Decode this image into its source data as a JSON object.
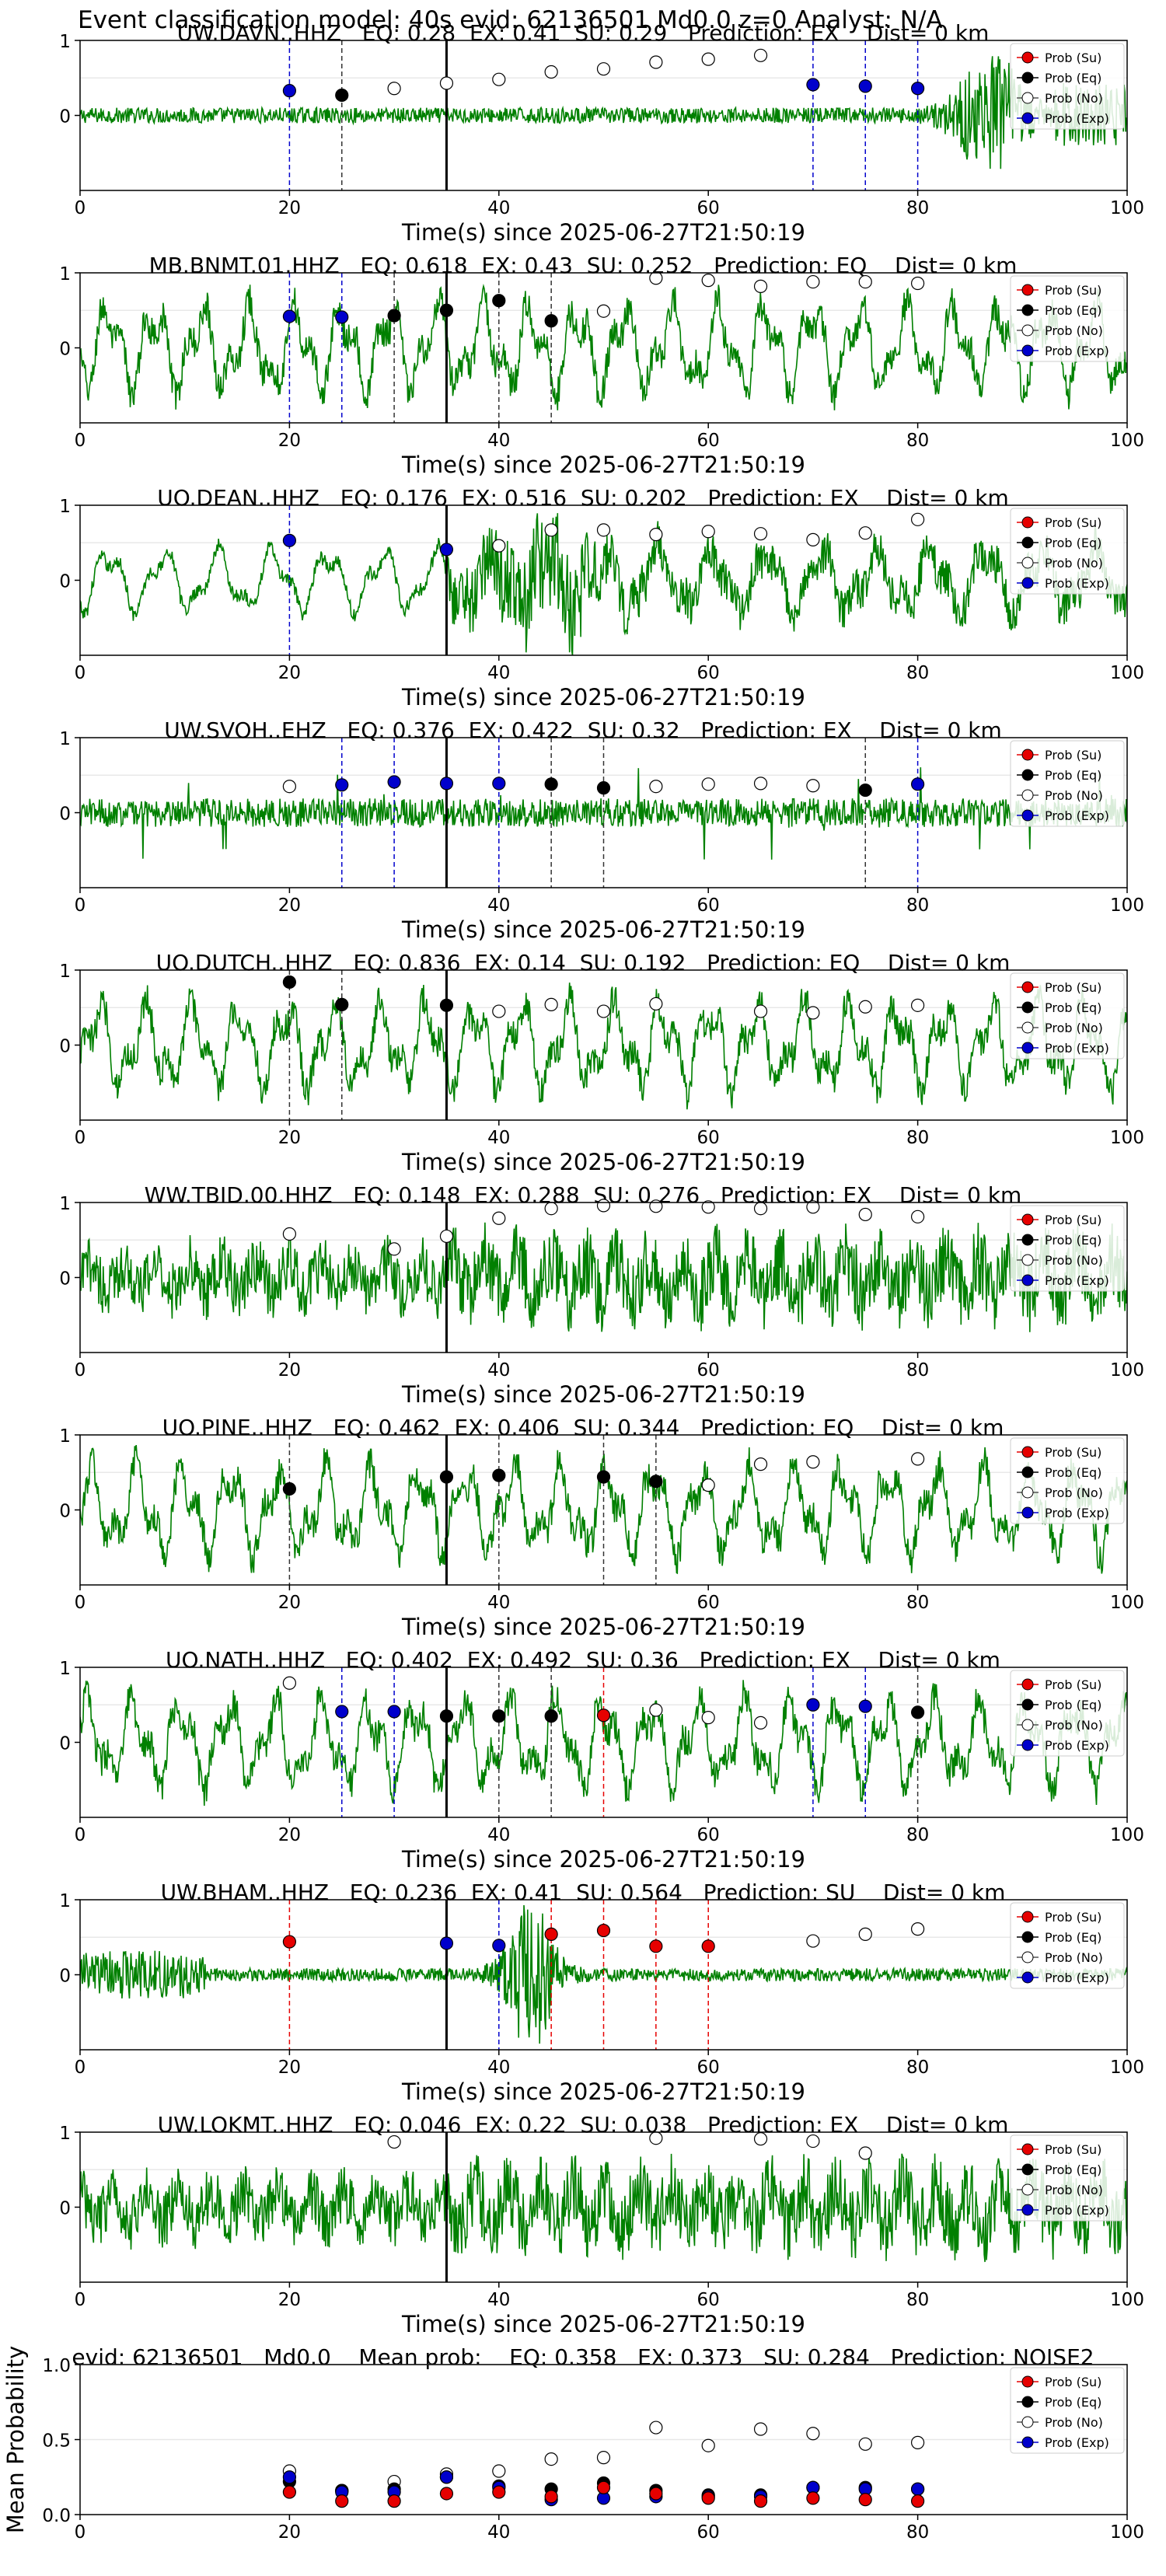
{
  "title": "Event classification model: 40s evid: 62136501 Md0.0 z=0 Analyst: N/A",
  "colors": {
    "su": "#e60000",
    "eq": "#000000",
    "no": "#ffffff",
    "exp": "#0000cc",
    "waveform": "#008000"
  },
  "chart_data": [
    {
      "type": "line",
      "title": "UW.DAVN..HHZ   EQ: 0.28  EX: 0.41  SU: 0.29   Prediction: EX    Dist= 0 km",
      "xlabel": "Time(s) since 2025-06-27T21:50:19",
      "xlim": [
        0,
        100
      ],
      "ylim": [
        -1,
        1
      ],
      "xticks": [
        "0",
        "20",
        "40",
        "60",
        "80",
        "100"
      ],
      "yticks": [
        "1",
        "0"
      ],
      "legend": [
        "Prob (Su)",
        "Prob (Eq)",
        "Prob (No)",
        "Prob (Exp)"
      ],
      "legend_position": "top-right",
      "event_line_x": 35,
      "waveform_style": "burst_end",
      "points": [
        {
          "x": 20,
          "y": 0.33,
          "c": "exp",
          "v": true
        },
        {
          "x": 25,
          "y": 0.27,
          "c": "eq",
          "v": true
        },
        {
          "x": 30,
          "y": 0.36,
          "c": "no"
        },
        {
          "x": 35,
          "y": 0.43,
          "c": "no"
        },
        {
          "x": 40,
          "y": 0.48,
          "c": "no"
        },
        {
          "x": 45,
          "y": 0.58,
          "c": "no"
        },
        {
          "x": 50,
          "y": 0.62,
          "c": "no"
        },
        {
          "x": 55,
          "y": 0.71,
          "c": "no"
        },
        {
          "x": 60,
          "y": 0.75,
          "c": "no"
        },
        {
          "x": 65,
          "y": 0.8,
          "c": "no"
        },
        {
          "x": 70,
          "y": 0.41,
          "c": "exp",
          "v": true
        },
        {
          "x": 75,
          "y": 0.39,
          "c": "exp",
          "v": true
        },
        {
          "x": 80,
          "y": 0.36,
          "c": "exp",
          "v": true
        }
      ]
    },
    {
      "type": "line",
      "title": "MB.BNMT.01.HHZ   EQ: 0.618  EX: 0.43  SU: 0.252   Prediction: EQ    Dist= 0 km",
      "xlabel": "Time(s) since 2025-06-27T21:50:19",
      "xlim": [
        0,
        100
      ],
      "ylim": [
        -1,
        1
      ],
      "xticks": [
        "0",
        "20",
        "40",
        "60",
        "80",
        "100"
      ],
      "yticks": [
        "1",
        "0"
      ],
      "legend": [
        "Prob (Su)",
        "Prob (Eq)",
        "Prob (No)",
        "Prob (Exp)"
      ],
      "legend_position": "top-right",
      "event_line_x": 35,
      "waveform_style": "lowfreq",
      "points": [
        {
          "x": 20,
          "y": 0.42,
          "c": "exp",
          "v": true
        },
        {
          "x": 25,
          "y": 0.41,
          "c": "exp",
          "v": true
        },
        {
          "x": 30,
          "y": 0.43,
          "c": "eq",
          "v": true
        },
        {
          "x": 35,
          "y": 0.5,
          "c": "eq",
          "v": true
        },
        {
          "x": 40,
          "y": 0.63,
          "c": "eq",
          "v": true
        },
        {
          "x": 45,
          "y": 0.36,
          "c": "eq",
          "v": true
        },
        {
          "x": 50,
          "y": 0.49,
          "c": "no"
        },
        {
          "x": 55,
          "y": 0.93,
          "c": "no"
        },
        {
          "x": 60,
          "y": 0.9,
          "c": "no"
        },
        {
          "x": 65,
          "y": 0.82,
          "c": "no"
        },
        {
          "x": 70,
          "y": 0.88,
          "c": "no"
        },
        {
          "x": 75,
          "y": 0.88,
          "c": "no"
        },
        {
          "x": 80,
          "y": 0.86,
          "c": "no"
        }
      ]
    },
    {
      "type": "line",
      "title": "UO.DEAN..HHZ   EQ: 0.176  EX: 0.516  SU: 0.202   Prediction: EX    Dist= 0 km",
      "xlabel": "Time(s) since 2025-06-27T21:50:19",
      "xlim": [
        0,
        100
      ],
      "ylim": [
        -1,
        1
      ],
      "xticks": [
        "0",
        "20",
        "40",
        "60",
        "80",
        "100"
      ],
      "yticks": [
        "1",
        "0"
      ],
      "legend": [
        "Prob (Su)",
        "Prob (Eq)",
        "Prob (No)",
        "Prob (Exp)"
      ],
      "legend_position": "top-right",
      "event_line_x": 35,
      "waveform_style": "lowfreq_burst",
      "points": [
        {
          "x": 20,
          "y": 0.53,
          "c": "exp",
          "v": true
        },
        {
          "x": 35,
          "y": 0.41,
          "c": "exp"
        },
        {
          "x": 40,
          "y": 0.46,
          "c": "no"
        },
        {
          "x": 45,
          "y": 0.67,
          "c": "no"
        },
        {
          "x": 50,
          "y": 0.67,
          "c": "no"
        },
        {
          "x": 55,
          "y": 0.61,
          "c": "no"
        },
        {
          "x": 60,
          "y": 0.65,
          "c": "no"
        },
        {
          "x": 65,
          "y": 0.62,
          "c": "no"
        },
        {
          "x": 70,
          "y": 0.54,
          "c": "no"
        },
        {
          "x": 75,
          "y": 0.63,
          "c": "no"
        },
        {
          "x": 80,
          "y": 0.81,
          "c": "no"
        }
      ]
    },
    {
      "type": "line",
      "title": "UW.SVOH..EHZ   EQ: 0.376  EX: 0.422  SU: 0.32   Prediction: EX    Dist= 0 km",
      "xlabel": "Time(s) since 2025-06-27T21:50:19",
      "xlim": [
        0,
        100
      ],
      "ylim": [
        -1,
        1
      ],
      "xticks": [
        "0",
        "20",
        "40",
        "60",
        "80",
        "100"
      ],
      "yticks": [
        "1",
        "0"
      ],
      "legend": [
        "Prob (Su)",
        "Prob (Eq)",
        "Prob (No)",
        "Prob (Exp)"
      ],
      "legend_position": "top-right",
      "event_line_x": 35,
      "waveform_style": "noise",
      "points": [
        {
          "x": 20,
          "y": 0.35,
          "c": "no"
        },
        {
          "x": 25,
          "y": 0.37,
          "c": "exp",
          "v": true
        },
        {
          "x": 30,
          "y": 0.41,
          "c": "exp",
          "v": true
        },
        {
          "x": 35,
          "y": 0.39,
          "c": "exp"
        },
        {
          "x": 40,
          "y": 0.39,
          "c": "exp",
          "v": true
        },
        {
          "x": 45,
          "y": 0.38,
          "c": "eq",
          "v": true
        },
        {
          "x": 50,
          "y": 0.33,
          "c": "eq",
          "v": true
        },
        {
          "x": 55,
          "y": 0.35,
          "c": "no"
        },
        {
          "x": 60,
          "y": 0.38,
          "c": "no"
        },
        {
          "x": 65,
          "y": 0.39,
          "c": "no"
        },
        {
          "x": 70,
          "y": 0.36,
          "c": "no"
        },
        {
          "x": 75,
          "y": 0.3,
          "c": "eq",
          "v": true
        },
        {
          "x": 80,
          "y": 0.38,
          "c": "exp",
          "v": true
        }
      ]
    },
    {
      "type": "line",
      "title": "UO.DUTCH..HHZ   EQ: 0.836  EX: 0.14  SU: 0.192   Prediction: EQ    Dist= 0 km",
      "xlabel": "Time(s) since 2025-06-27T21:50:19",
      "xlim": [
        0,
        100
      ],
      "ylim": [
        -1,
        1
      ],
      "xticks": [
        "0",
        "20",
        "40",
        "60",
        "80",
        "100"
      ],
      "yticks": [
        "1",
        "0"
      ],
      "legend": [
        "Prob (Su)",
        "Prob (Eq)",
        "Prob (No)",
        "Prob (Exp)"
      ],
      "legend_position": "top-right",
      "event_line_x": 35,
      "waveform_style": "lowfreq",
      "points": [
        {
          "x": 20,
          "y": 0.84,
          "c": "eq",
          "v": true
        },
        {
          "x": 25,
          "y": 0.54,
          "c": "eq",
          "v": true
        },
        {
          "x": 35,
          "y": 0.53,
          "c": "eq"
        },
        {
          "x": 40,
          "y": 0.45,
          "c": "no"
        },
        {
          "x": 45,
          "y": 0.54,
          "c": "no"
        },
        {
          "x": 50,
          "y": 0.45,
          "c": "no"
        },
        {
          "x": 55,
          "y": 0.55,
          "c": "no"
        },
        {
          "x": 65,
          "y": 0.45,
          "c": "no"
        },
        {
          "x": 70,
          "y": 0.43,
          "c": "no"
        },
        {
          "x": 75,
          "y": 0.51,
          "c": "no"
        },
        {
          "x": 80,
          "y": 0.53,
          "c": "no"
        }
      ]
    },
    {
      "type": "line",
      "title": "WW.TBID.00.HHZ   EQ: 0.148  EX: 0.288  SU: 0.276   Prediction: EX    Dist= 0 km",
      "xlabel": "Time(s) since 2025-06-27T21:50:19",
      "xlim": [
        0,
        100
      ],
      "ylim": [
        -1,
        1
      ],
      "xticks": [
        "0",
        "20",
        "40",
        "60",
        "80",
        "100"
      ],
      "yticks": [
        "1",
        "0"
      ],
      "legend": [
        "Prob (Su)",
        "Prob (Eq)",
        "Prob (No)",
        "Prob (Exp)"
      ],
      "legend_position": "top-right",
      "event_line_x": 35,
      "waveform_style": "noise_large",
      "points": [
        {
          "x": 20,
          "y": 0.58,
          "c": "no"
        },
        {
          "x": 30,
          "y": 0.38,
          "c": "no"
        },
        {
          "x": 35,
          "y": 0.55,
          "c": "no"
        },
        {
          "x": 40,
          "y": 0.79,
          "c": "no"
        },
        {
          "x": 45,
          "y": 0.92,
          "c": "no"
        },
        {
          "x": 50,
          "y": 0.96,
          "c": "no"
        },
        {
          "x": 55,
          "y": 0.95,
          "c": "no"
        },
        {
          "x": 60,
          "y": 0.94,
          "c": "no"
        },
        {
          "x": 65,
          "y": 0.92,
          "c": "no"
        },
        {
          "x": 70,
          "y": 0.94,
          "c": "no"
        },
        {
          "x": 75,
          "y": 0.84,
          "c": "no"
        },
        {
          "x": 80,
          "y": 0.81,
          "c": "no"
        }
      ]
    },
    {
      "type": "line",
      "title": "UO.PINE..HHZ   EQ: 0.462  EX: 0.406  SU: 0.344   Prediction: EQ    Dist= 0 km",
      "xlabel": "Time(s) since 2025-06-27T21:50:19",
      "xlim": [
        0,
        100
      ],
      "ylim": [
        -1,
        1
      ],
      "xticks": [
        "0",
        "20",
        "40",
        "60",
        "80",
        "100"
      ],
      "yticks": [
        "1",
        "0"
      ],
      "legend": [
        "Prob (Su)",
        "Prob (Eq)",
        "Prob (No)",
        "Prob (Exp)"
      ],
      "legend_position": "top-right",
      "event_line_x": 35,
      "waveform_style": "lowfreq",
      "points": [
        {
          "x": 20,
          "y": 0.28,
          "c": "eq",
          "v": true
        },
        {
          "x": 35,
          "y": 0.44,
          "c": "eq"
        },
        {
          "x": 40,
          "y": 0.46,
          "c": "eq",
          "v": true
        },
        {
          "x": 50,
          "y": 0.44,
          "c": "eq",
          "v": true
        },
        {
          "x": 55,
          "y": 0.38,
          "c": "eq",
          "v": true
        },
        {
          "x": 60,
          "y": 0.33,
          "c": "no"
        },
        {
          "x": 65,
          "y": 0.61,
          "c": "no"
        },
        {
          "x": 70,
          "y": 0.64,
          "c": "no"
        },
        {
          "x": 80,
          "y": 0.68,
          "c": "no"
        }
      ]
    },
    {
      "type": "line",
      "title": "UO.NATH..HHZ   EQ: 0.402  EX: 0.492  SU: 0.36   Prediction: EX    Dist= 0 km",
      "xlabel": "Time(s) since 2025-06-27T21:50:19",
      "xlim": [
        0,
        100
      ],
      "ylim": [
        -1,
        1
      ],
      "xticks": [
        "0",
        "20",
        "40",
        "60",
        "80",
        "100"
      ],
      "yticks": [
        "1",
        "0"
      ],
      "legend": [
        "Prob (Su)",
        "Prob (Eq)",
        "Prob (No)",
        "Prob (Exp)"
      ],
      "legend_position": "top-right",
      "event_line_x": 35,
      "waveform_style": "lowfreq",
      "points": [
        {
          "x": 20,
          "y": 0.79,
          "c": "no"
        },
        {
          "x": 25,
          "y": 0.41,
          "c": "exp",
          "v": true
        },
        {
          "x": 30,
          "y": 0.41,
          "c": "exp",
          "v": true
        },
        {
          "x": 35,
          "y": 0.35,
          "c": "eq"
        },
        {
          "x": 40,
          "y": 0.35,
          "c": "eq",
          "v": true
        },
        {
          "x": 45,
          "y": 0.35,
          "c": "eq",
          "v": true
        },
        {
          "x": 50,
          "y": 0.36,
          "c": "su",
          "v": true
        },
        {
          "x": 55,
          "y": 0.43,
          "c": "no"
        },
        {
          "x": 60,
          "y": 0.33,
          "c": "no"
        },
        {
          "x": 65,
          "y": 0.26,
          "c": "no"
        },
        {
          "x": 70,
          "y": 0.5,
          "c": "exp",
          "v": true
        },
        {
          "x": 75,
          "y": 0.48,
          "c": "exp",
          "v": true
        },
        {
          "x": 80,
          "y": 0.4,
          "c": "eq",
          "v": true
        }
      ]
    },
    {
      "type": "line",
      "title": "UW.BHAM..HHZ   EQ: 0.236  EX: 0.41  SU: 0.564   Prediction: SU    Dist= 0 km",
      "xlabel": "Time(s) since 2025-06-27T21:50:19",
      "xlim": [
        0,
        100
      ],
      "ylim": [
        -1,
        1
      ],
      "xticks": [
        "0",
        "20",
        "40",
        "60",
        "80",
        "100"
      ],
      "yticks": [
        "1",
        "0"
      ],
      "legend": [
        "Prob (Su)",
        "Prob (Eq)",
        "Prob (No)",
        "Prob (Exp)"
      ],
      "legend_position": "top-right",
      "event_line_x": 35,
      "waveform_style": "burst_mid",
      "points": [
        {
          "x": 20,
          "y": 0.44,
          "c": "su",
          "v": true
        },
        {
          "x": 35,
          "y": 0.42,
          "c": "exp"
        },
        {
          "x": 40,
          "y": 0.39,
          "c": "exp",
          "v": true
        },
        {
          "x": 45,
          "y": 0.54,
          "c": "su",
          "v": true
        },
        {
          "x": 50,
          "y": 0.59,
          "c": "su",
          "v": true
        },
        {
          "x": 55,
          "y": 0.38,
          "c": "su",
          "v": true
        },
        {
          "x": 60,
          "y": 0.38,
          "c": "su",
          "v": true
        },
        {
          "x": 70,
          "y": 0.45,
          "c": "no"
        },
        {
          "x": 75,
          "y": 0.54,
          "c": "no"
        },
        {
          "x": 80,
          "y": 0.61,
          "c": "no"
        }
      ]
    },
    {
      "type": "line",
      "title": "UW.LOKMT..HHZ   EQ: 0.046  EX: 0.22  SU: 0.038   Prediction: EX    Dist= 0 km",
      "xlabel": "Time(s) since 2025-06-27T21:50:19",
      "xlim": [
        0,
        100
      ],
      "ylim": [
        -1,
        1
      ],
      "xticks": [
        "0",
        "20",
        "40",
        "60",
        "80",
        "100"
      ],
      "yticks": [
        "1",
        "0"
      ],
      "legend": [
        "Prob (Su)",
        "Prob (Eq)",
        "Prob (No)",
        "Prob (Exp)"
      ],
      "legend_position": "top-right",
      "event_line_x": 35,
      "waveform_style": "noise_large",
      "points": [
        {
          "x": 30,
          "y": 0.87,
          "c": "no"
        },
        {
          "x": 55,
          "y": 0.92,
          "c": "no"
        },
        {
          "x": 65,
          "y": 0.91,
          "c": "no"
        },
        {
          "x": 70,
          "y": 0.88,
          "c": "no"
        },
        {
          "x": 75,
          "y": 0.72,
          "c": "no"
        }
      ]
    },
    {
      "type": "scatter",
      "title": "evid: 62136501   Md0.0    Mean prob:    EQ: 0.358   EX: 0.373   SU: 0.284   Prediction: NOISE2",
      "xlabel": "",
      "ylabel": "Mean Probability",
      "xlim": [
        0,
        100
      ],
      "ylim": [
        0,
        1
      ],
      "xticks": [
        "0",
        "20",
        "40",
        "60",
        "80",
        "100"
      ],
      "yticks": [
        "1.0",
        "0.5",
        "0.0"
      ],
      "legend": [
        "Prob (Su)",
        "Prob (Eq)",
        "Prob (No)",
        "Prob (Exp)"
      ],
      "legend_position": "top-right",
      "series": [
        {
          "name": "Prob (Su)",
          "x": [
            20,
            25,
            30,
            35,
            40,
            45,
            50,
            55,
            60,
            65,
            70,
            75,
            80
          ],
          "values": [
            0.15,
            0.09,
            0.09,
            0.14,
            0.15,
            0.12,
            0.18,
            0.14,
            0.11,
            0.09,
            0.11,
            0.1,
            0.09
          ]
        },
        {
          "name": "Prob (Eq)",
          "x": [
            20,
            25,
            30,
            35,
            40,
            45,
            50,
            55,
            60,
            65,
            70,
            75,
            80
          ],
          "values": [
            0.22,
            0.16,
            0.17,
            0.25,
            0.19,
            0.17,
            0.21,
            0.16,
            0.13,
            0.13,
            0.18,
            0.18,
            0.17
          ]
        },
        {
          "name": "Prob (No)",
          "x": [
            20,
            25,
            30,
            35,
            40,
            45,
            50,
            55,
            60,
            65,
            70,
            75,
            80
          ],
          "values": [
            0.29,
            0.16,
            0.22,
            0.27,
            0.29,
            0.37,
            0.38,
            0.58,
            0.46,
            0.57,
            0.54,
            0.47,
            0.48
          ]
        },
        {
          "name": "Prob (Exp)",
          "x": [
            20,
            25,
            30,
            35,
            40,
            45,
            50,
            55,
            60,
            65,
            70,
            75,
            80
          ],
          "values": [
            0.25,
            0.15,
            0.15,
            0.25,
            0.18,
            0.1,
            0.11,
            0.12,
            0.12,
            0.12,
            0.18,
            0.17,
            0.17
          ]
        }
      ]
    }
  ]
}
